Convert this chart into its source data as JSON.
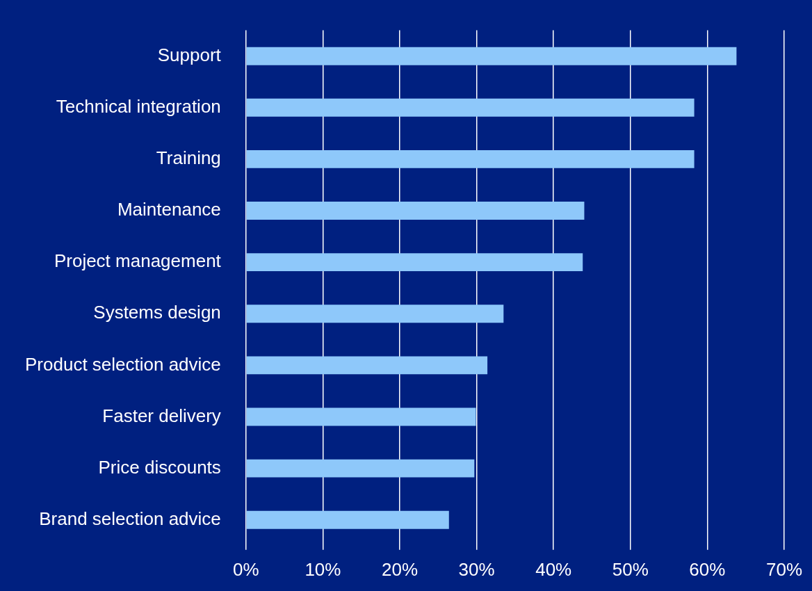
{
  "chart_data": {
    "type": "bar",
    "orientation": "horizontal",
    "categories": [
      "Support",
      "Technical integration",
      "Training",
      "Maintenance",
      "Project management",
      "Systems design",
      "Product selection advice",
      "Faster delivery",
      "Price discounts",
      "Brand selection advice"
    ],
    "values": [
      63.8,
      58.3,
      58.3,
      44,
      43.8,
      33.5,
      31.4,
      29.9,
      29.7,
      26.4
    ],
    "color": "#8ec8fa",
    "xlim": [
      0,
      70
    ],
    "xticks": [
      {
        "value": 0,
        "label": "0%"
      },
      {
        "value": 10,
        "label": "10%"
      },
      {
        "value": 20,
        "label": "20%"
      },
      {
        "value": 30,
        "label": "30%"
      },
      {
        "value": 40,
        "label": "40%"
      },
      {
        "value": 50,
        "label": "50%"
      },
      {
        "value": 60,
        "label": "60%"
      },
      {
        "value": 70,
        "label": "70%"
      }
    ],
    "grid": "x",
    "legend": false
  }
}
